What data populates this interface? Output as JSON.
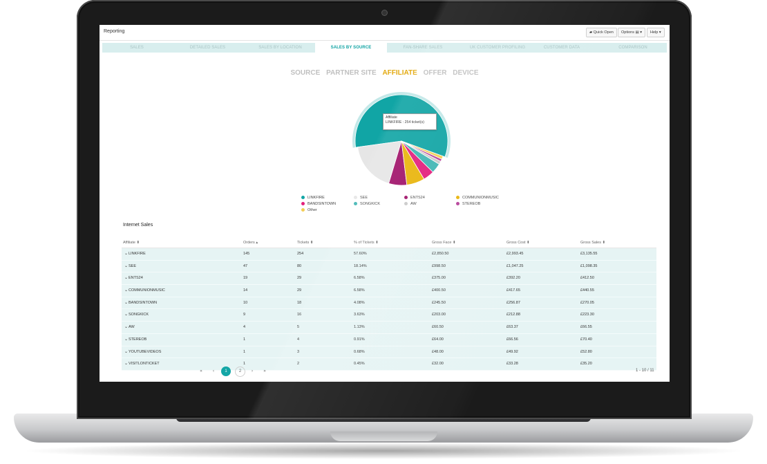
{
  "app": {
    "title": "Reporting"
  },
  "toolbar": {
    "quick_open": "Quick Open",
    "options": "Options ▤ ▾",
    "help": "Help ▾"
  },
  "tabs": [
    {
      "label": "SALES"
    },
    {
      "label": "DETAILED SALES"
    },
    {
      "label": "SALES BY LOCATION"
    },
    {
      "label": "SALES BY SOURCE",
      "active": true
    },
    {
      "label": "FAN-SHARE SALES"
    },
    {
      "label": "UK CUSTOMER PROFILING"
    },
    {
      "label": "CUSTOMER DATA"
    },
    {
      "label": "COMPARISON"
    }
  ],
  "subtabs": [
    {
      "label": "SOURCE"
    },
    {
      "label": "PARTNER SITE"
    },
    {
      "label": "AFFILIATE",
      "active": true
    },
    {
      "label": "OFFER"
    },
    {
      "label": "DEVICE"
    }
  ],
  "tooltip": {
    "title": "Affiliate",
    "body": "LINKFIRE : 254 ticket(s)"
  },
  "chart_data": {
    "type": "pie",
    "slices": [
      {
        "label": "LINKFIRE",
        "value": 254,
        "color": "#11a5a5"
      },
      {
        "label": "SEE",
        "value": 80,
        "color": "#e6e6e6"
      },
      {
        "label": "ENTS24",
        "value": 29,
        "color": "#a0136a"
      },
      {
        "label": "COMMUNIONMUSIC",
        "value": 29,
        "color": "#e9b50c"
      },
      {
        "label": "BANDSINTOWN",
        "value": 18,
        "color": "#e3207c"
      },
      {
        "label": "SONGKICK",
        "value": 16,
        "color": "#41b6b4"
      },
      {
        "label": "AW",
        "value": 5,
        "color": "#c9c9c9"
      },
      {
        "label": "STEREOB",
        "value": 4,
        "color": "#b6429a"
      },
      {
        "label": "Other",
        "value": 5,
        "color": "#f3cd55"
      }
    ],
    "highlighted": "LINKFIRE"
  },
  "table": {
    "title": "Internet Sales",
    "headers": [
      "Affiliate ⬍",
      "Orders ▴",
      "Tickets ⬍",
      "% of Tickets ⬍",
      "Gross Face ⬍",
      "Gross Cost ⬍",
      "Gross Sales ⬍"
    ],
    "rows": [
      [
        "LINKFIRE",
        "145",
        "254",
        "57.60%",
        "£2,850.50",
        "£2,993.45",
        "£3,135.55"
      ],
      [
        "SEE",
        "47",
        "80",
        "18.14%",
        "£998.50",
        "£1,047.25",
        "£1,098.35"
      ],
      [
        "ENTS24",
        "19",
        "29",
        "6.58%",
        "£375.00",
        "£392.20",
        "£412.50"
      ],
      [
        "COMMUNIONMUSIC",
        "14",
        "29",
        "6.58%",
        "£400.50",
        "£417.65",
        "£440.55"
      ],
      [
        "BANDSINTOWN",
        "10",
        "18",
        "4.08%",
        "£245.50",
        "£256.87",
        "£270.05"
      ],
      [
        "SONGKICK",
        "9",
        "16",
        "3.63%",
        "£203.00",
        "£212.88",
        "£223.30"
      ],
      [
        "AW",
        "4",
        "5",
        "1.13%",
        "£60.50",
        "£63.37",
        "£66.55"
      ],
      [
        "STEREOB",
        "1",
        "4",
        "0.91%",
        "£64.00",
        "£66.56",
        "£70.40"
      ],
      [
        "YOUTUBEVIDEOS",
        "1",
        "3",
        "0.68%",
        "£48.00",
        "£49.92",
        "£52.80"
      ],
      [
        "VISITLONTICKET",
        "1",
        "2",
        "0.45%",
        "£32.00",
        "£33.28",
        "£35.20"
      ]
    ]
  },
  "pagination": {
    "first": "«",
    "prev": "‹",
    "pages": [
      "1",
      "2"
    ],
    "next": "›",
    "last": "»",
    "info": "1 - 10 / 11"
  }
}
